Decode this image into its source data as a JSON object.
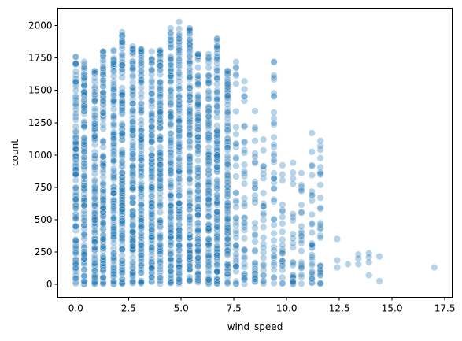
{
  "chart_data": {
    "type": "scatter",
    "title": "",
    "xlabel": "wind_speed",
    "ylabel": "count",
    "xlim": [
      -0.85,
      17.85
    ],
    "ylim": [
      -101,
      2135
    ],
    "x_ticks": [
      0.0,
      2.5,
      5.0,
      7.5,
      10.0,
      12.5,
      15.0,
      17.5
    ],
    "x_tick_labels": [
      "0.0",
      "2.5",
      "5.0",
      "7.5",
      "10.0",
      "12.5",
      "15.0",
      "17.5"
    ],
    "y_ticks": [
      0,
      250,
      500,
      750,
      1000,
      1250,
      1500,
      1750,
      2000
    ],
    "y_tick_labels": [
      "0",
      "250",
      "500",
      "750",
      "1000",
      "1250",
      "1500",
      "1750",
      "2000"
    ],
    "grid": false,
    "legend": "none",
    "point_color": "#1f77b4",
    "columns": [
      {
        "x": 0.0,
        "max": 1760
      },
      {
        "x": 0.4,
        "max": 1720
      },
      {
        "x": 0.9,
        "max": 1650
      },
      {
        "x": 1.3,
        "max": 1800
      },
      {
        "x": 1.8,
        "max": 1810
      },
      {
        "x": 2.2,
        "max": 1950
      },
      {
        "x": 2.7,
        "max": 1840
      },
      {
        "x": 3.1,
        "max": 1820
      },
      {
        "x": 3.6,
        "max": 1800
      },
      {
        "x": 4.0,
        "max": 1810
      },
      {
        "x": 4.5,
        "max": 1980
      },
      {
        "x": 4.9,
        "max": 2030
      },
      {
        "x": 5.4,
        "max": 1980
      },
      {
        "x": 5.8,
        "max": 1780
      },
      {
        "x": 6.3,
        "max": 1780
      },
      {
        "x": 6.7,
        "max": 1900
      },
      {
        "x": 7.2,
        "max": 1650
      },
      {
        "x": 7.6,
        "max": 1720
      },
      {
        "x": 8.0,
        "max": 1570
      },
      {
        "x": 8.5,
        "max": 1340
      },
      {
        "x": 8.9,
        "max": 1120
      },
      {
        "x": 9.4,
        "max": 1720
      },
      {
        "x": 9.8,
        "max": 920
      },
      {
        "x": 10.3,
        "max": 940
      },
      {
        "x": 10.7,
        "max": 860
      },
      {
        "x": 11.2,
        "max": 1170
      },
      {
        "x": 11.6,
        "max": 1110
      },
      {
        "x": 12.1,
        "max": 0
      }
    ],
    "sparse_points": [
      {
        "x": 12.4,
        "y": 350
      },
      {
        "x": 12.4,
        "y": 185
      },
      {
        "x": 12.4,
        "y": 130
      },
      {
        "x": 12.9,
        "y": 155
      },
      {
        "x": 13.4,
        "y": 230
      },
      {
        "x": 13.4,
        "y": 200
      },
      {
        "x": 13.4,
        "y": 155
      },
      {
        "x": 13.9,
        "y": 240
      },
      {
        "x": 13.9,
        "y": 210
      },
      {
        "x": 13.9,
        "y": 170
      },
      {
        "x": 13.9,
        "y": 70
      },
      {
        "x": 14.4,
        "y": 215
      },
      {
        "x": 14.4,
        "y": 25
      },
      {
        "x": 17.0,
        "y": 130
      },
      {
        "x": 11.2,
        "y": 210
      },
      {
        "x": 11.2,
        "y": 90
      },
      {
        "x": 11.6,
        "y": 70
      },
      {
        "x": 10.7,
        "y": 320
      },
      {
        "x": 10.3,
        "y": 20
      }
    ]
  }
}
